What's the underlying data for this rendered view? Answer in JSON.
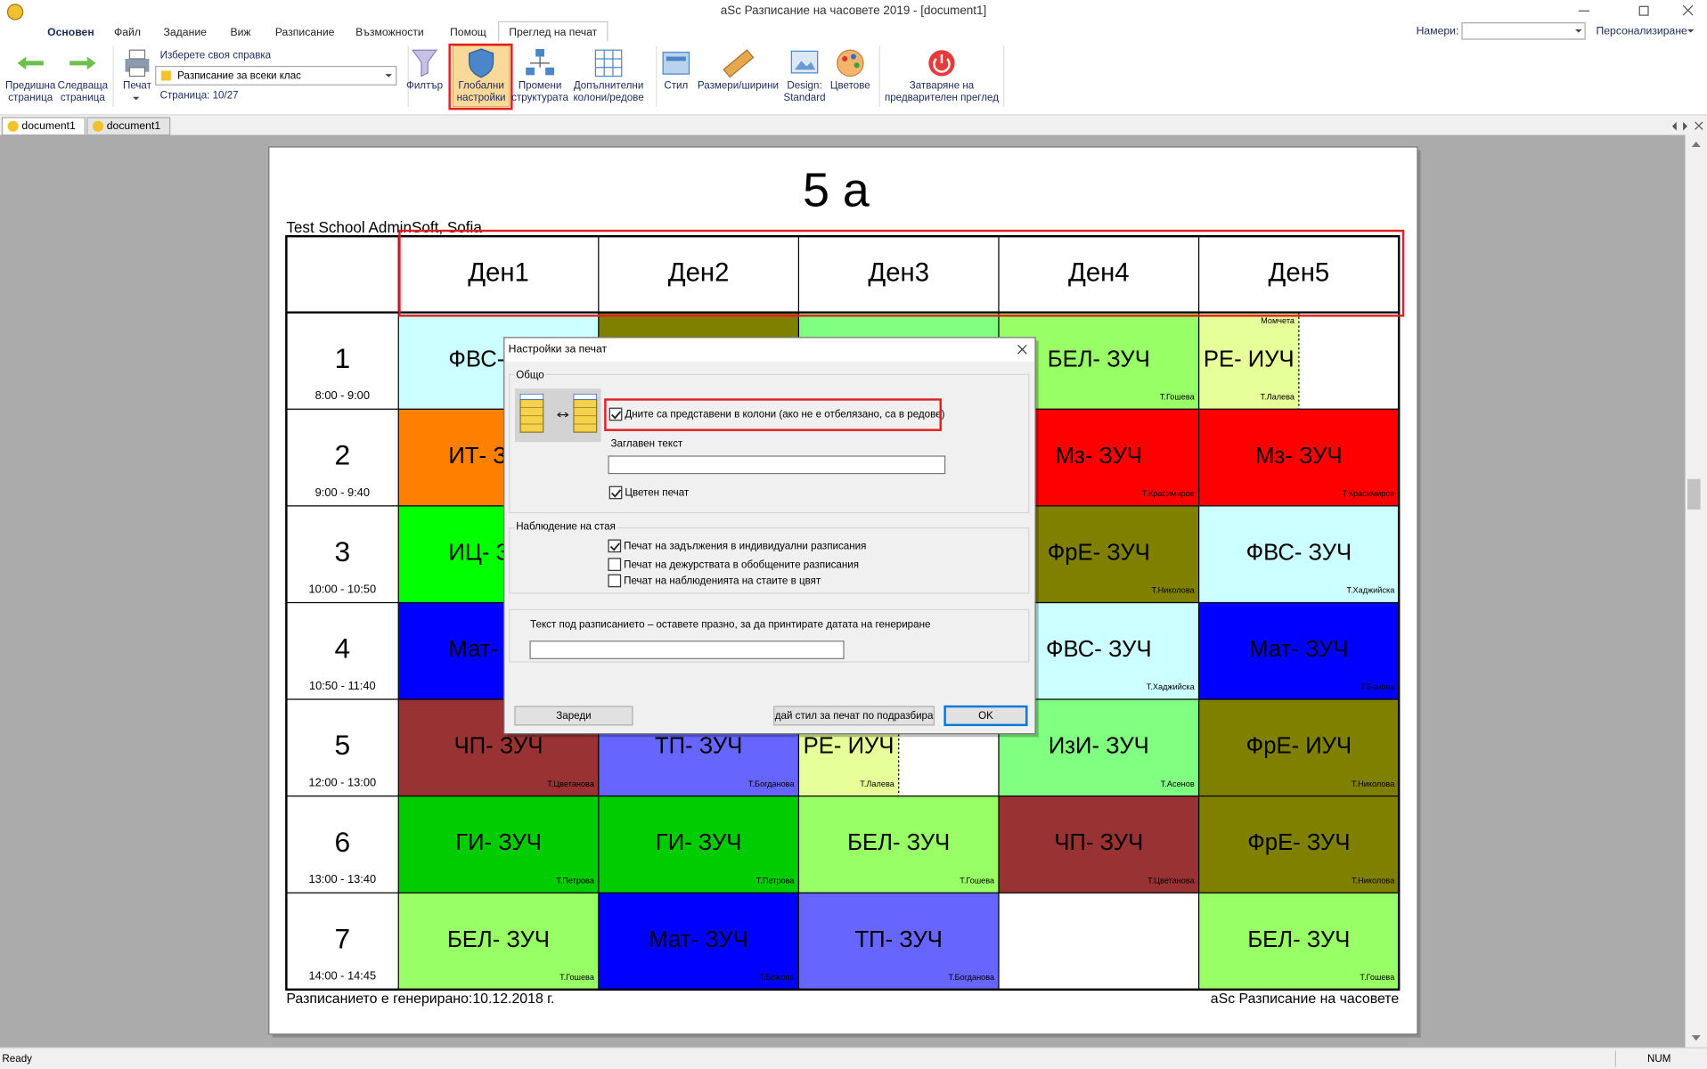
{
  "window": {
    "title": "aSc Разписание на часовете 2019  - [document1]",
    "find_label": "Намери:",
    "customize": "Персонализиране"
  },
  "menu": {
    "items": [
      "Основен",
      "Файл",
      "Задание",
      "Виж",
      "Разписание",
      "Възможности",
      "Помощ",
      "Преглед на печат"
    ],
    "active": 7
  },
  "ribbon": {
    "buttons": [
      {
        "lines": [
          "Предишна",
          "страница"
        ]
      },
      {
        "lines": [
          "Следваща",
          "страница"
        ]
      },
      {
        "lines": [
          "Печат"
        ]
      },
      {
        "lines": [
          "Филтър"
        ]
      },
      {
        "lines": [
          "Глобални",
          "настройки"
        ]
      },
      {
        "lines": [
          "Промени",
          "структурата"
        ]
      },
      {
        "lines": [
          "Допълнителни",
          "колони/редове"
        ]
      },
      {
        "lines": [
          "Стил"
        ]
      },
      {
        "lines": [
          "Размери/ширини"
        ]
      },
      {
        "lines": [
          "Design:",
          "Standard"
        ]
      },
      {
        "lines": [
          "Цветове"
        ]
      },
      {
        "lines": [
          "Затваряне на",
          "предварителен преглед"
        ]
      }
    ],
    "report_label": "Изберете своя справка",
    "report_value": "Разписание за всеки клас",
    "page_info": "Страница: 10/27"
  },
  "doc_tabs": [
    "document1",
    "document1"
  ],
  "timetable": {
    "title": "5 а",
    "school": "Test School AdminSoft, Sofia",
    "days": [
      "Ден1",
      "Ден2",
      "Ден3",
      "Ден4",
      "Ден5"
    ],
    "rows": [
      {
        "period": 1,
        "time": "8:00 - 9:00",
        "cells": [
          {
            "subject": "ФВС-",
            "color": "#ccffff"
          },
          {
            "color": "#808000"
          },
          {
            "color": "#80ff80"
          },
          {
            "subject": "БЕЛ- ЗУЧ",
            "teacher": "Т.Гошева",
            "color": "#99ff66"
          },
          {
            "split": [
              {
                "subject": "РЕ- ИУЧ",
                "teacher": "Т.Лалева",
                "group": "Момчета",
                "color": "#e6ff99"
              },
              {
                "color": "#ffffff"
              }
            ]
          }
        ]
      },
      {
        "period": 2,
        "time": "9:00 - 9:40",
        "cells": [
          {
            "subject": "ИТ- З",
            "color": "#ff8000"
          },
          null,
          null,
          {
            "subject": "Мз- ЗУЧ",
            "teacher": "Т.Красимиров",
            "color": "#ff0000"
          },
          {
            "subject": "Мз- ЗУЧ",
            "teacher": "Т.Красимиров",
            "color": "#ff0000"
          }
        ]
      },
      {
        "period": 3,
        "time": "10:00 - 10:50",
        "cells": [
          {
            "subject": "ИЦ- З",
            "color": "#00ff00"
          },
          null,
          null,
          {
            "subject": "ФрЕ- ЗУЧ",
            "teacher": "Т.Николова",
            "color": "#808000"
          },
          {
            "subject": "ФВС- ЗУЧ",
            "teacher": "Т.Хаджийска",
            "color": "#ccffff"
          }
        ]
      },
      {
        "period": 4,
        "time": "10:50 - 11:40",
        "cells": [
          {
            "subject": "Мат-",
            "color": "#0000ff"
          },
          null,
          null,
          {
            "subject": "ФВС- ЗУЧ",
            "teacher": "Т.Хаджийска",
            "color": "#ccffff"
          },
          {
            "subject": "Мат- ЗУЧ",
            "teacher": "Т.Банова",
            "color": "#0000ff"
          }
        ]
      },
      {
        "period": 5,
        "time": "12:00 - 13:00",
        "cells": [
          {
            "subject": "ЧП- ЗУЧ",
            "teacher": "Т.Цветанова",
            "color": "#993333"
          },
          {
            "subject": "ТП- ЗУЧ",
            "teacher": "Т.Богданова",
            "color": "#6666ff"
          },
          {
            "split": [
              {
                "subject": "РЕ- ИУЧ",
                "teacher": "Т.Лалева",
                "color": "#e6ff99"
              },
              {
                "color": "#ffffff"
              }
            ]
          },
          {
            "subject": "ИзИ- ЗУЧ",
            "teacher": "Т.Асенов",
            "color": "#80ff80"
          },
          {
            "subject": "ФрЕ- ИУЧ",
            "teacher": "Т.Николова",
            "color": "#808000"
          }
        ]
      },
      {
        "period": 6,
        "time": "13:00 - 13:40",
        "cells": [
          {
            "subject": "ГИ- ЗУЧ",
            "teacher": "Т.Петрова",
            "color": "#00cc00"
          },
          {
            "subject": "ГИ- ЗУЧ",
            "teacher": "Т.Петрова",
            "color": "#00cc00"
          },
          {
            "subject": "БЕЛ- ЗУЧ",
            "teacher": "Т.Гошева",
            "color": "#99ff66"
          },
          {
            "subject": "ЧП- ЗУЧ",
            "teacher": "Т.Цветанова",
            "color": "#993333"
          },
          {
            "subject": "ФрЕ- ЗУЧ",
            "teacher": "Т.Николова",
            "color": "#808000"
          }
        ]
      },
      {
        "period": 7,
        "time": "14:00 - 14:45",
        "cells": [
          {
            "subject": "БЕЛ- ЗУЧ",
            "teacher": "Т.Гошева",
            "color": "#99ff66"
          },
          {
            "subject": "Мат- ЗУЧ",
            "teacher": "Т.Божова",
            "color": "#0000ff"
          },
          {
            "subject": "ТП- ЗУЧ",
            "teacher": "Т.Богданова",
            "color": "#6666ff"
          },
          {
            "color": "#ffffff"
          },
          {
            "subject": "БЕЛ- ЗУЧ",
            "teacher": "Т.Гошева",
            "color": "#99ff66"
          }
        ]
      }
    ],
    "footer_left": "Разписанието е генерирано:10.12.2018 г.",
    "footer_right": "aSc Разписание на часовете"
  },
  "dialog": {
    "title": "Настройки за печат",
    "general": {
      "label": "Общо",
      "columns": {
        "label": "Дните са представени в колони (ако не е отбелязано, са в редове)",
        "checked": true
      },
      "header_label": "Заглавен текст",
      "color_print": {
        "label": "Цветен печат",
        "checked": true
      }
    },
    "room": {
      "label": "Наблюдение на стая",
      "options": [
        {
          "label": "Печат на задължения в индивидуални разписания",
          "checked": true
        },
        {
          "label": "Печат на дежурствата в обобщените разписания",
          "checked": false
        },
        {
          "label": "Печат на наблюденията на стаите в цвят",
          "checked": false
        }
      ]
    },
    "footer_text_label": "Текст под разписанието – оставете празно, за да принтирате датата на генериране",
    "buttons": {
      "load": "Зареди",
      "default": "дай стил за печат по подразбира",
      "ok": "OK"
    }
  },
  "status": {
    "left": "Ready",
    "right": "NUM"
  }
}
